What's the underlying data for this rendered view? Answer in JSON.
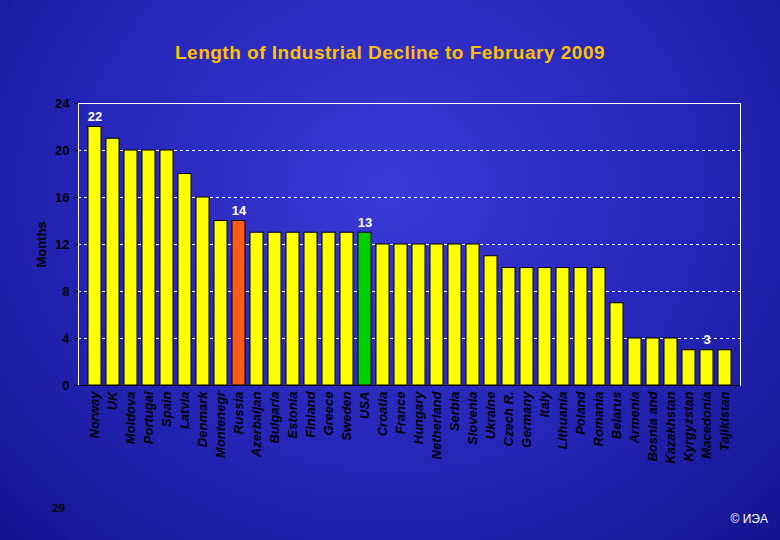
{
  "chart_data": {
    "type": "bar",
    "title": "Length of Industrial Decline to February 2009",
    "y_label": "Months",
    "categories": [
      "Norway",
      "UK",
      "Moldova",
      "Portugal",
      "Spain",
      "Latvia",
      "Denmark",
      "Montenegr",
      "Russia",
      "Azerbaijan",
      "Bulgaria",
      "Estonia",
      "Finland",
      "Greece",
      "Sweden",
      "USA",
      "Croatia",
      "France",
      "Hungary",
      "Netherland",
      "Serbia",
      "Slovenia",
      "Ukraine",
      "Czech R.",
      "Germany",
      "Italy",
      "Lithuania",
      "Poland",
      "Romania",
      "Belarus",
      "Armenia",
      "Bosnia and",
      "Kazakhstan",
      "Kyrgyzstan",
      "Macedonia",
      "Tajikistan"
    ],
    "values": [
      22,
      21,
      20,
      20,
      20,
      18,
      16,
      14,
      14,
      13,
      13,
      13,
      13,
      13,
      13,
      13,
      12,
      12,
      12,
      12,
      12,
      12,
      11,
      10,
      10,
      10,
      10,
      10,
      10,
      7,
      4,
      4,
      4,
      3,
      3,
      3
    ],
    "colors": [
      "#ffff00",
      "#ffff00",
      "#ffff00",
      "#ffff00",
      "#ffff00",
      "#ffff00",
      "#ffff00",
      "#ffff00",
      "#ff5a1e",
      "#ffff00",
      "#ffff00",
      "#ffff00",
      "#ffff00",
      "#ffff00",
      "#ffff00",
      "#00d000",
      "#ffff00",
      "#ffff00",
      "#ffff00",
      "#ffff00",
      "#ffff00",
      "#ffff00",
      "#ffff00",
      "#ffff00",
      "#ffff00",
      "#ffff00",
      "#ffff00",
      "#ffff00",
      "#ffff00",
      "#ffff00",
      "#ffff00",
      "#ffff00",
      "#ffff00",
      "#ffff00",
      "#ffff00",
      "#ffff00"
    ],
    "annotations": [
      {
        "category": "Norway",
        "text": "22"
      },
      {
        "category": "Russia",
        "text": "14"
      },
      {
        "category": "USA",
        "text": "13"
      },
      {
        "category": "Macedonia",
        "text": "3"
      }
    ],
    "ylim": [
      0,
      24
    ],
    "yticks": [
      0,
      4,
      8,
      12,
      16,
      20,
      24
    ],
    "grid": true
  },
  "footer": {
    "left": "29",
    "right": "© ИЭА"
  }
}
